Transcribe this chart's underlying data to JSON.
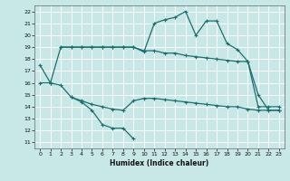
{
  "bg_color": "#c8e8e8",
  "grid_color": "#ffffff",
  "line_color": "#1a6e6e",
  "line_width": 0.9,
  "marker_size": 2.5,
  "xlabel": "Humidex (Indice chaleur)",
  "xlim": [
    -0.5,
    23.5
  ],
  "ylim": [
    10.5,
    22.5
  ],
  "yticks": [
    11,
    12,
    13,
    14,
    15,
    16,
    17,
    18,
    19,
    20,
    21,
    22
  ],
  "xticks": [
    0,
    1,
    2,
    3,
    4,
    5,
    6,
    7,
    8,
    9,
    10,
    11,
    12,
    13,
    14,
    15,
    16,
    17,
    18,
    19,
    20,
    21,
    22,
    23
  ],
  "line1_x": [
    0,
    1,
    2,
    3,
    4,
    5,
    6,
    7,
    8,
    9,
    10,
    11,
    12,
    13,
    14,
    15,
    16,
    17,
    18,
    19,
    20,
    21,
    22,
    23
  ],
  "line1_y": [
    17.5,
    16.0,
    19.0,
    19.0,
    19.0,
    19.0,
    19.0,
    19.0,
    19.0,
    19.0,
    18.6,
    21.0,
    21.3,
    21.5,
    22.0,
    20.0,
    21.2,
    21.2,
    19.3,
    18.8,
    17.8,
    15.0,
    13.7,
    13.7
  ],
  "line2_x": [
    2,
    3,
    4,
    5,
    6,
    7,
    8,
    9,
    10,
    11,
    12,
    13,
    14,
    15,
    16,
    17,
    18,
    19,
    20,
    21,
    22,
    23
  ],
  "line2_y": [
    19.0,
    19.0,
    19.0,
    19.0,
    19.0,
    19.0,
    19.0,
    19.0,
    18.7,
    18.7,
    18.5,
    18.5,
    18.3,
    18.2,
    18.1,
    18.0,
    17.9,
    17.8,
    17.8,
    14.0,
    14.0,
    14.0
  ],
  "line3_x": [
    0,
    1,
    2,
    3,
    4,
    5,
    6,
    7,
    8,
    9,
    10,
    11,
    12,
    13,
    14,
    15,
    16,
    17,
    18,
    19,
    20,
    21,
    22,
    23
  ],
  "line3_y": [
    16.0,
    16.0,
    15.8,
    14.8,
    14.5,
    14.2,
    14.0,
    13.8,
    13.7,
    14.5,
    14.7,
    14.7,
    14.6,
    14.5,
    14.4,
    14.3,
    14.2,
    14.1,
    14.0,
    14.0,
    13.8,
    13.7,
    13.7,
    13.7
  ],
  "line4_x": [
    3,
    4,
    5,
    6,
    7,
    8,
    9
  ],
  "line4_y": [
    14.8,
    14.4,
    13.7,
    12.5,
    12.2,
    12.2,
    11.3
  ]
}
